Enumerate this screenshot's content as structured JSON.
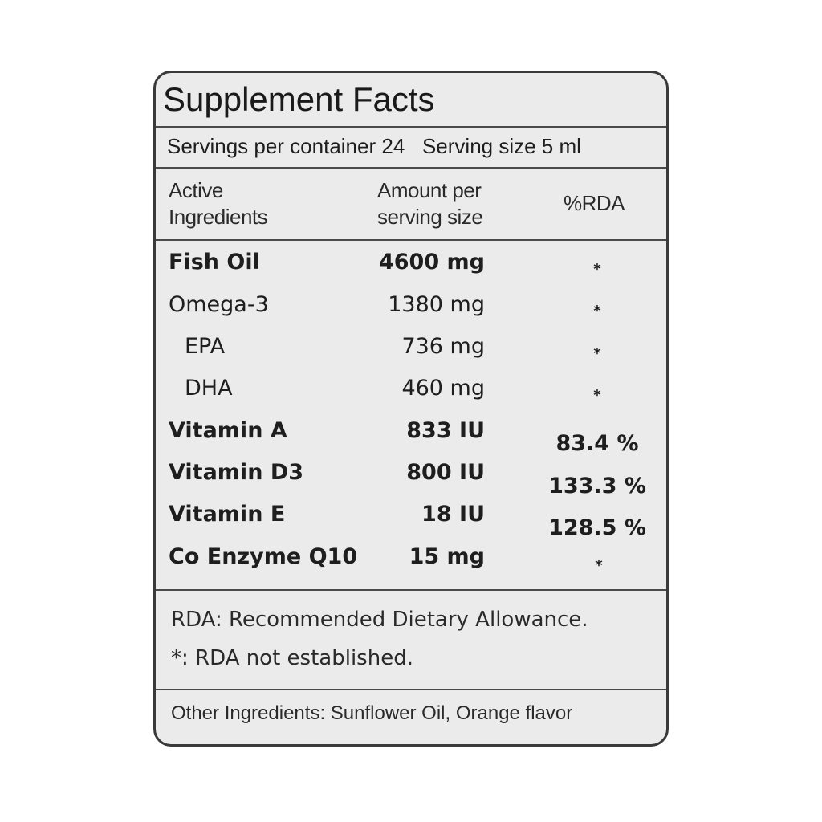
{
  "title": "Supplement Facts",
  "servings_line": "Servings per container 24   Serving size 5 ml",
  "headers": {
    "ingredient_line1": "Active",
    "ingredient_line2": "Ingredients",
    "amount_line1": "Amount per",
    "amount_line2": "serving size",
    "rda": "%RDA"
  },
  "rows": [
    {
      "name": "Fish Oil",
      "amount": "4600 mg",
      "rda": "*",
      "bold": true
    },
    {
      "name": "Omega-3",
      "amount": "1380 mg",
      "rda": "*",
      "bold": false
    },
    {
      "name": "EPA",
      "amount": "736 mg",
      "rda": "*",
      "bold": false
    },
    {
      "name": "DHA",
      "amount": "460 mg",
      "rda": "*",
      "bold": false
    },
    {
      "name": "Vitamin A",
      "amount": "833 IU",
      "rda": "83.4 %",
      "bold": true
    },
    {
      "name": "Vitamin D3",
      "amount": "800 IU",
      "rda": "133.3 %",
      "bold": true
    },
    {
      "name": "Vitamin E",
      "amount": "18 IU",
      "rda": "128.5 %",
      "bold": true
    },
    {
      "name": "Co Enzyme Q10",
      "amount": "15 mg",
      "rda": "*",
      "bold": true
    }
  ],
  "notes": {
    "rda_definition": "RDA: Recommended Dietary Allowance.",
    "asterisk_note": "*: RDA not established."
  },
  "other_ingredients": "Other Ingredients: Sunflower Oil, Orange flavor"
}
